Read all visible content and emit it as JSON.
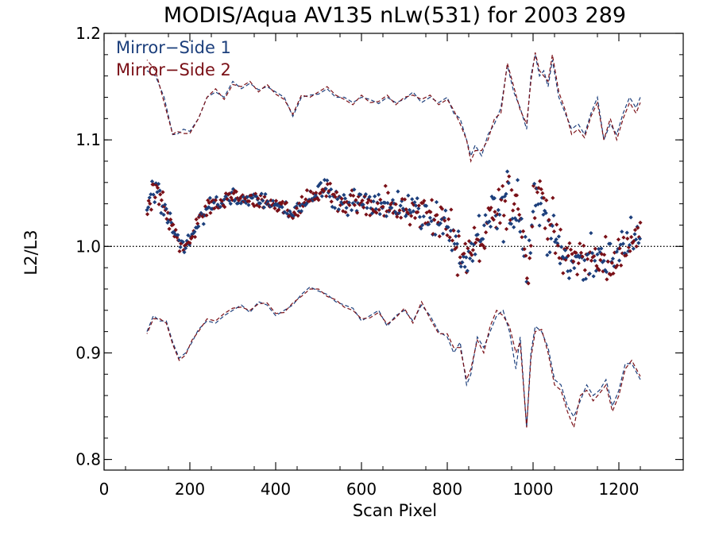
{
  "chart_data": {
    "type": "scatter",
    "title": "MODIS/Aqua AV135 nLw(531) for 2003 289",
    "xlabel": "Scan Pixel",
    "ylabel": "L2/L3",
    "xlim": [
      0,
      1350
    ],
    "ylim": [
      0.79,
      1.2
    ],
    "xticks": [
      0,
      200,
      400,
      600,
      800,
      1000,
      1200
    ],
    "xtick_labels": [
      "0",
      "200",
      "400",
      "600",
      "800",
      "1000",
      "1200"
    ],
    "yticks": [
      0.8,
      0.9,
      1.0,
      1.1,
      1.2
    ],
    "ytick_labels": [
      "0.8",
      "0.9",
      "1.0",
      "1.1",
      "1.2"
    ],
    "reference_line": 1.0,
    "grid": false,
    "legend_position": "top-left",
    "colors": {
      "mirror_side_1": "#1c3f7c",
      "mirror_side_2": "#7a1017"
    },
    "series": [
      {
        "name": "Mirror−Side 1",
        "color": "#1c3f7c"
      },
      {
        "name": "Mirror−Side 2",
        "color": "#7a1017"
      }
    ],
    "mean_profile": {
      "x": [
        100,
        115,
        130,
        145,
        160,
        175,
        190,
        205,
        220,
        240,
        260,
        280,
        300,
        320,
        340,
        360,
        380,
        400,
        420,
        440,
        460,
        480,
        500,
        520,
        540,
        560,
        580,
        600,
        620,
        640,
        660,
        680,
        700,
        720,
        740,
        760,
        780,
        800,
        815,
        830,
        845,
        860,
        875,
        890,
        905,
        920,
        935,
        950,
        965,
        980,
        990,
        1000,
        1010,
        1020,
        1030,
        1045,
        1060,
        1075,
        1090,
        1110,
        1130,
        1150,
        1170,
        1190,
        1210,
        1230,
        1250
      ],
      "y": [
        1.035,
        1.055,
        1.045,
        1.03,
        1.02,
        1.0,
        1.0,
        1.01,
        1.025,
        1.035,
        1.04,
        1.042,
        1.046,
        1.043,
        1.044,
        1.043,
        1.04,
        1.038,
        1.035,
        1.03,
        1.038,
        1.046,
        1.05,
        1.055,
        1.044,
        1.04,
        1.04,
        1.042,
        1.038,
        1.035,
        1.04,
        1.038,
        1.035,
        1.036,
        1.034,
        1.03,
        1.025,
        1.018,
        1.005,
        0.995,
        0.985,
        1.0,
        1.005,
        1.01,
        1.03,
        1.03,
        1.04,
        1.04,
        1.045,
        0.995,
        0.985,
        1.045,
        1.05,
        1.04,
        1.03,
        1.015,
        0.995,
        0.99,
        0.985,
        0.99,
        0.988,
        0.985,
        0.99,
        0.985,
        1.0,
        1.012,
        1.005
      ],
      "spread": [
        0.008,
        0.008,
        0.008,
        0.007,
        0.007,
        0.006,
        0.006,
        0.006,
        0.006,
        0.005,
        0.005,
        0.005,
        0.005,
        0.005,
        0.005,
        0.005,
        0.005,
        0.005,
        0.005,
        0.006,
        0.006,
        0.006,
        0.006,
        0.006,
        0.008,
        0.009,
        0.01,
        0.01,
        0.01,
        0.01,
        0.01,
        0.011,
        0.012,
        0.012,
        0.012,
        0.012,
        0.014,
        0.014,
        0.015,
        0.016,
        0.016,
        0.015,
        0.015,
        0.016,
        0.018,
        0.02,
        0.022,
        0.022,
        0.022,
        0.02,
        0.02,
        0.022,
        0.022,
        0.022,
        0.022,
        0.018,
        0.015,
        0.014,
        0.014,
        0.014,
        0.014,
        0.013,
        0.012,
        0.012,
        0.012,
        0.012,
        0.01
      ]
    },
    "upper_bound": {
      "x": [
        100,
        120,
        140,
        160,
        170,
        185,
        200,
        220,
        240,
        260,
        280,
        300,
        320,
        340,
        360,
        380,
        400,
        420,
        440,
        460,
        480,
        500,
        520,
        540,
        560,
        580,
        600,
        620,
        640,
        660,
        680,
        700,
        720,
        740,
        760,
        780,
        800,
        815,
        830,
        845,
        855,
        865,
        880,
        895,
        910,
        925,
        940,
        955,
        970,
        985,
        995,
        1005,
        1015,
        1025,
        1035,
        1045,
        1060,
        1075,
        1090,
        1105,
        1120,
        1135,
        1150,
        1165,
        1180,
        1195,
        1210,
        1225,
        1240,
        1250
      ],
      "ms1": [
        1.165,
        1.16,
        1.14,
        1.105,
        1.105,
        1.11,
        1.108,
        1.12,
        1.14,
        1.145,
        1.14,
        1.155,
        1.148,
        1.153,
        1.147,
        1.15,
        1.145,
        1.14,
        1.122,
        1.14,
        1.142,
        1.143,
        1.148,
        1.14,
        1.14,
        1.135,
        1.14,
        1.138,
        1.134,
        1.14,
        1.135,
        1.138,
        1.145,
        1.135,
        1.14,
        1.135,
        1.14,
        1.125,
        1.12,
        1.1,
        1.085,
        1.095,
        1.085,
        1.105,
        1.115,
        1.13,
        1.17,
        1.145,
        1.13,
        1.11,
        1.16,
        1.18,
        1.16,
        1.165,
        1.15,
        1.175,
        1.14,
        1.125,
        1.11,
        1.115,
        1.105,
        1.125,
        1.14,
        1.1,
        1.115,
        1.105,
        1.125,
        1.14,
        1.13,
        1.14
      ],
      "ms2": [
        1.175,
        1.165,
        1.135,
        1.105,
        1.108,
        1.106,
        1.106,
        1.12,
        1.14,
        1.148,
        1.138,
        1.152,
        1.15,
        1.155,
        1.145,
        1.152,
        1.143,
        1.138,
        1.124,
        1.142,
        1.14,
        1.145,
        1.15,
        1.142,
        1.138,
        1.133,
        1.142,
        1.135,
        1.136,
        1.142,
        1.133,
        1.14,
        1.142,
        1.138,
        1.142,
        1.133,
        1.138,
        1.128,
        1.115,
        1.1,
        1.08,
        1.09,
        1.09,
        1.1,
        1.12,
        1.125,
        1.172,
        1.15,
        1.128,
        1.115,
        1.155,
        1.182,
        1.165,
        1.16,
        1.155,
        1.18,
        1.145,
        1.128,
        1.105,
        1.11,
        1.102,
        1.122,
        1.135,
        1.1,
        1.12,
        1.1,
        1.12,
        1.135,
        1.125,
        1.135
      ]
    },
    "lower_bound": {
      "x": [
        100,
        115,
        130,
        145,
        160,
        175,
        190,
        205,
        220,
        240,
        260,
        280,
        300,
        320,
        340,
        360,
        380,
        400,
        420,
        440,
        460,
        480,
        500,
        520,
        540,
        560,
        580,
        600,
        620,
        640,
        660,
        680,
        700,
        720,
        740,
        760,
        780,
        800,
        815,
        830,
        845,
        855,
        870,
        885,
        900,
        915,
        930,
        945,
        960,
        970,
        985,
        995,
        1005,
        1020,
        1035,
        1050,
        1065,
        1080,
        1095,
        1110,
        1125,
        1140,
        1155,
        1170,
        1185,
        1200,
        1215,
        1230,
        1250
      ],
      "ms1": [
        0.92,
        0.935,
        0.93,
        0.93,
        0.91,
        0.895,
        0.9,
        0.91,
        0.922,
        0.93,
        0.928,
        0.935,
        0.94,
        0.945,
        0.938,
        0.948,
        0.945,
        0.935,
        0.94,
        0.945,
        0.955,
        0.962,
        0.958,
        0.955,
        0.948,
        0.945,
        0.942,
        0.93,
        0.935,
        0.94,
        0.925,
        0.935,
        0.94,
        0.93,
        0.945,
        0.935,
        0.92,
        0.915,
        0.9,
        0.91,
        0.87,
        0.88,
        0.915,
        0.905,
        0.92,
        0.935,
        0.94,
        0.92,
        0.885,
        0.915,
        0.83,
        0.9,
        0.925,
        0.92,
        0.905,
        0.875,
        0.87,
        0.85,
        0.84,
        0.855,
        0.87,
        0.86,
        0.865,
        0.875,
        0.85,
        0.865,
        0.89,
        0.89,
        0.875
      ],
      "ms2": [
        0.918,
        0.932,
        0.932,
        0.928,
        0.908,
        0.893,
        0.898,
        0.912,
        0.92,
        0.932,
        0.93,
        0.937,
        0.942,
        0.943,
        0.94,
        0.946,
        0.947,
        0.937,
        0.938,
        0.947,
        0.953,
        0.96,
        0.96,
        0.953,
        0.95,
        0.943,
        0.94,
        0.932,
        0.933,
        0.938,
        0.927,
        0.933,
        0.942,
        0.928,
        0.948,
        0.932,
        0.918,
        0.918,
        0.905,
        0.905,
        0.875,
        0.885,
        0.912,
        0.9,
        0.925,
        0.94,
        0.935,
        0.925,
        0.9,
        0.91,
        0.83,
        0.895,
        0.92,
        0.922,
        0.9,
        0.87,
        0.865,
        0.845,
        0.83,
        0.86,
        0.865,
        0.855,
        0.862,
        0.87,
        0.845,
        0.86,
        0.885,
        0.893,
        0.878
      ]
    },
    "scatter_settings": {
      "x_start": 100,
      "x_end": 1250,
      "step": 3,
      "seed": 289
    }
  }
}
